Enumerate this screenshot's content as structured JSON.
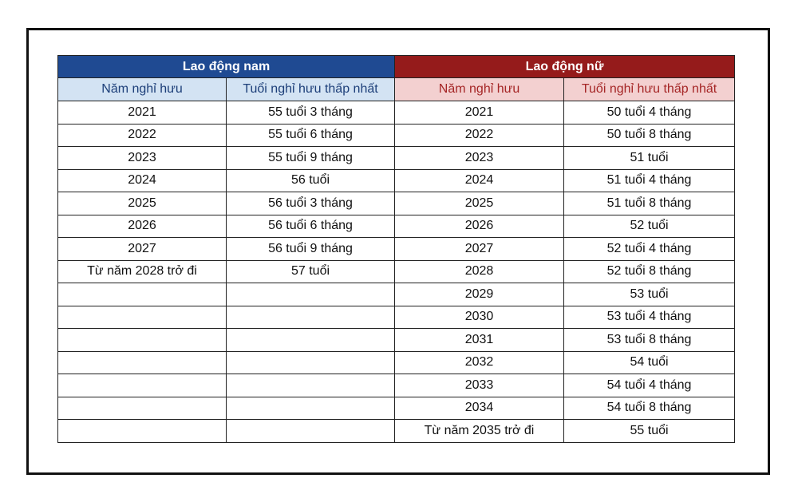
{
  "table": {
    "groups": [
      {
        "title": "Lao động nam",
        "columns": [
          "Năm nghỉ hưu",
          "Tuổi nghỉ hưu thấp nhất"
        ],
        "rows": [
          [
            "2021",
            "55 tuổi 3 tháng"
          ],
          [
            "2022",
            "55 tuổi 6 tháng"
          ],
          [
            "2023",
            "55 tuổi 9 tháng"
          ],
          [
            "2024",
            "56 tuổi"
          ],
          [
            "2025",
            "56 tuổi 3 tháng"
          ],
          [
            "2026",
            "56 tuổi 6 tháng"
          ],
          [
            "2027",
            "56 tuổi 9 tháng"
          ],
          [
            "Từ năm 2028 trở đi",
            "57 tuổi"
          ]
        ]
      },
      {
        "title": "Lao động nữ",
        "columns": [
          "Năm nghỉ hưu",
          "Tuổi nghỉ hưu thấp nhất"
        ],
        "rows": [
          [
            "2021",
            "50 tuổi 4 tháng"
          ],
          [
            "2022",
            "50 tuổi 8 tháng"
          ],
          [
            "2023",
            "51 tuổi"
          ],
          [
            "2024",
            "51 tuổi 4 tháng"
          ],
          [
            "2025",
            "51 tuổi 8 tháng"
          ],
          [
            "2026",
            "52 tuổi"
          ],
          [
            "2027",
            "52 tuổi 4 tháng"
          ],
          [
            "2028",
            "52 tuổi 8 tháng"
          ],
          [
            "2029",
            "53 tuổi"
          ],
          [
            "2030",
            "53 tuổi 4 tháng"
          ],
          [
            "2031",
            "53 tuổi 8 tháng"
          ],
          [
            "2032",
            "54 tuổi"
          ],
          [
            "2033",
            "54 tuổi 4 tháng"
          ],
          [
            "2034",
            "54 tuổi 8 tháng"
          ],
          [
            "Từ năm 2035 trở đi",
            "55 tuổi"
          ]
        ]
      }
    ]
  }
}
